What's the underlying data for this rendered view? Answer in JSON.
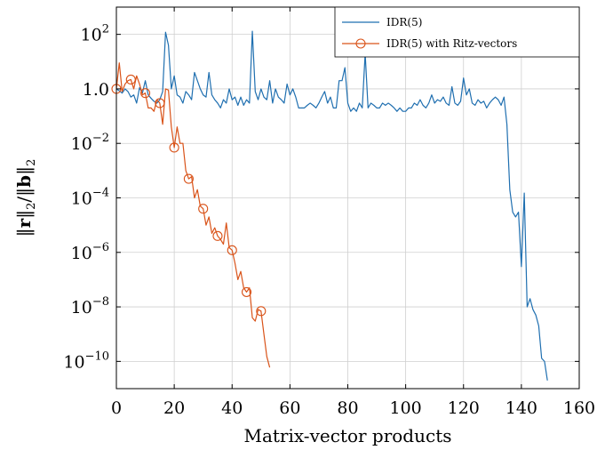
{
  "chart_data": {
    "type": "line",
    "title": "",
    "xlabel": "Matrix-vector products",
    "ylabel": "||r||2/||b||2",
    "ylabel_parts": [
      "‖",
      "r",
      "‖",
      "2",
      "/‖",
      "b",
      "‖",
      "2"
    ],
    "xscale": "linear",
    "yscale": "log",
    "xlim": [
      0,
      160
    ],
    "ylim_exp": [
      -11,
      3
    ],
    "xticks": [
      0,
      20,
      40,
      60,
      80,
      100,
      120,
      140,
      160
    ],
    "xtick_labels": [
      "0",
      "20",
      "40",
      "60",
      "80",
      "100",
      "120",
      "140",
      "160"
    ],
    "yticks_exp": [
      -10,
      -8,
      -6,
      -4,
      -2,
      0,
      2
    ],
    "ytick_labels": [
      {
        "base": "10",
        "exp": "−10"
      },
      {
        "base": "10",
        "exp": "−8"
      },
      {
        "base": "10",
        "exp": "−6"
      },
      {
        "base": "10",
        "exp": "−4"
      },
      {
        "base": "10",
        "exp": "−2"
      },
      {
        "base": "10",
        "exp": "0",
        "plain": "1.0"
      },
      {
        "base": "10",
        "exp": "2"
      }
    ],
    "grid": true,
    "legend_position": "top-right",
    "series": [
      {
        "name": "IDR(5)",
        "color": "#1f6fb0",
        "marker": "none",
        "points": [
          [
            0,
            1.0
          ],
          [
            1,
            0.85
          ],
          [
            2,
            0.7
          ],
          [
            3,
            1.0
          ],
          [
            4,
            0.8
          ],
          [
            5,
            0.5
          ],
          [
            6,
            0.6
          ],
          [
            7,
            0.3
          ],
          [
            8,
            1.1
          ],
          [
            9,
            0.7
          ],
          [
            10,
            2.0
          ],
          [
            11,
            0.6
          ],
          [
            12,
            0.45
          ],
          [
            13,
            0.35
          ],
          [
            14,
            0.3
          ],
          [
            15,
            0.4
          ],
          [
            16,
            0.8
          ],
          [
            17,
            120
          ],
          [
            18,
            40
          ],
          [
            19,
            1.0
          ],
          [
            20,
            3.0
          ],
          [
            21,
            0.6
          ],
          [
            22,
            0.5
          ],
          [
            23,
            0.3
          ],
          [
            24,
            0.8
          ],
          [
            25,
            0.6
          ],
          [
            26,
            0.4
          ],
          [
            27,
            4.0
          ],
          [
            28,
            2.0
          ],
          [
            29,
            1.0
          ],
          [
            30,
            0.6
          ],
          [
            31,
            0.5
          ],
          [
            32,
            4.0
          ],
          [
            33,
            0.6
          ],
          [
            34,
            0.4
          ],
          [
            35,
            0.3
          ],
          [
            36,
            0.2
          ],
          [
            37,
            0.4
          ],
          [
            38,
            0.3
          ],
          [
            39,
            1.0
          ],
          [
            40,
            0.4
          ],
          [
            41,
            0.5
          ],
          [
            42,
            0.25
          ],
          [
            43,
            0.5
          ],
          [
            44,
            0.25
          ],
          [
            45,
            0.4
          ],
          [
            46,
            0.3
          ],
          [
            47,
            130
          ],
          [
            48,
            0.8
          ],
          [
            49,
            0.4
          ],
          [
            50,
            1.0
          ],
          [
            51,
            0.5
          ],
          [
            52,
            0.4
          ],
          [
            53,
            2.0
          ],
          [
            54,
            0.3
          ],
          [
            55,
            1.0
          ],
          [
            56,
            0.5
          ],
          [
            57,
            0.4
          ],
          [
            58,
            0.3
          ],
          [
            59,
            1.5
          ],
          [
            60,
            0.6
          ],
          [
            61,
            1.0
          ],
          [
            62,
            0.5
          ],
          [
            63,
            0.2
          ],
          [
            64,
            0.2
          ],
          [
            65,
            0.2
          ],
          [
            66,
            0.25
          ],
          [
            67,
            0.3
          ],
          [
            68,
            0.25
          ],
          [
            69,
            0.2
          ],
          [
            70,
            0.3
          ],
          [
            71,
            0.5
          ],
          [
            72,
            0.8
          ],
          [
            73,
            0.3
          ],
          [
            74,
            0.5
          ],
          [
            75,
            0.2
          ],
          [
            76,
            0.2
          ],
          [
            77,
            2.0
          ],
          [
            78,
            2.0
          ],
          [
            79,
            6.0
          ],
          [
            80,
            0.3
          ],
          [
            81,
            0.15
          ],
          [
            82,
            0.2
          ],
          [
            83,
            0.15
          ],
          [
            84,
            0.3
          ],
          [
            85,
            0.2
          ],
          [
            86,
            20
          ],
          [
            87,
            0.2
          ],
          [
            88,
            0.3
          ],
          [
            89,
            0.25
          ],
          [
            90,
            0.2
          ],
          [
            91,
            0.2
          ],
          [
            92,
            0.3
          ],
          [
            93,
            0.25
          ],
          [
            94,
            0.3
          ],
          [
            95,
            0.25
          ],
          [
            96,
            0.2
          ],
          [
            97,
            0.15
          ],
          [
            98,
            0.2
          ],
          [
            99,
            0.15
          ],
          [
            100,
            0.15
          ],
          [
            101,
            0.2
          ],
          [
            102,
            0.2
          ],
          [
            103,
            0.3
          ],
          [
            104,
            0.25
          ],
          [
            105,
            0.4
          ],
          [
            106,
            0.25
          ],
          [
            107,
            0.2
          ],
          [
            108,
            0.3
          ],
          [
            109,
            0.6
          ],
          [
            110,
            0.3
          ],
          [
            111,
            0.4
          ],
          [
            112,
            0.35
          ],
          [
            113,
            0.5
          ],
          [
            114,
            0.3
          ],
          [
            115,
            0.25
          ],
          [
            116,
            1.2
          ],
          [
            117,
            0.3
          ],
          [
            118,
            0.25
          ],
          [
            119,
            0.35
          ],
          [
            120,
            2.5
          ],
          [
            121,
            0.6
          ],
          [
            122,
            1.0
          ],
          [
            123,
            0.3
          ],
          [
            124,
            0.25
          ],
          [
            125,
            0.4
          ],
          [
            126,
            0.3
          ],
          [
            127,
            0.35
          ],
          [
            128,
            0.2
          ],
          [
            129,
            0.3
          ],
          [
            130,
            0.4
          ],
          [
            131,
            0.5
          ],
          [
            132,
            0.4
          ],
          [
            133,
            0.25
          ],
          [
            134,
            0.5
          ],
          [
            135,
            0.05
          ],
          [
            136,
            0.0002
          ],
          [
            137,
            3e-05
          ],
          [
            138,
            2e-05
          ],
          [
            139,
            3e-05
          ],
          [
            140,
            3e-07
          ],
          [
            141,
            0.00015
          ],
          [
            142,
            1e-08
          ],
          [
            143,
            2e-08
          ],
          [
            144,
            8e-09
          ],
          [
            145,
            5e-09
          ],
          [
            146,
            2e-09
          ],
          [
            147,
            1.3e-10
          ],
          [
            148,
            1e-10
          ],
          [
            149,
            2e-11
          ]
        ]
      },
      {
        "name": "IDR(5) with Ritz-vectors",
        "color": "#d95319",
        "marker": "circle",
        "marker_every": 5,
        "points": [
          [
            0,
            1.0
          ],
          [
            1,
            9.0
          ],
          [
            2,
            0.8
          ],
          [
            3,
            1.5
          ],
          [
            4,
            2.0
          ],
          [
            5,
            2.2
          ],
          [
            6,
            1.0
          ],
          [
            7,
            3.0
          ],
          [
            8,
            1.5
          ],
          [
            9,
            0.6
          ],
          [
            10,
            0.7
          ],
          [
            11,
            0.2
          ],
          [
            12,
            0.2
          ],
          [
            13,
            0.15
          ],
          [
            14,
            0.4
          ],
          [
            15,
            0.3
          ],
          [
            16,
            0.05
          ],
          [
            17,
            1.0
          ],
          [
            18,
            0.9
          ],
          [
            19,
            0.04
          ],
          [
            20,
            0.007
          ],
          [
            21,
            0.04
          ],
          [
            22,
            0.01
          ],
          [
            23,
            0.01
          ],
          [
            24,
            0.001
          ],
          [
            25,
            0.0005
          ],
          [
            26,
            0.0006
          ],
          [
            27,
            0.0001
          ],
          [
            28,
            0.0002
          ],
          [
            29,
            5e-05
          ],
          [
            30,
            4e-05
          ],
          [
            31,
            1e-05
          ],
          [
            32,
            2e-05
          ],
          [
            33,
            5e-06
          ],
          [
            34,
            8e-06
          ],
          [
            35,
            4e-06
          ],
          [
            36,
            3e-06
          ],
          [
            37,
            2e-06
          ],
          [
            38,
            1.2e-05
          ],
          [
            39,
            1.5e-06
          ],
          [
            40,
            1.2e-06
          ],
          [
            41,
            4e-07
          ],
          [
            42,
            1e-07
          ],
          [
            43,
            2e-07
          ],
          [
            44,
            5e-08
          ],
          [
            45,
            3.5e-08
          ],
          [
            46,
            5e-08
          ],
          [
            47,
            4e-09
          ],
          [
            48,
            3e-09
          ],
          [
            49,
            8e-09
          ],
          [
            50,
            7e-09
          ],
          [
            51,
            1e-09
          ],
          [
            52,
            1.5e-10
          ],
          [
            53,
            6e-11
          ]
        ]
      }
    ]
  }
}
